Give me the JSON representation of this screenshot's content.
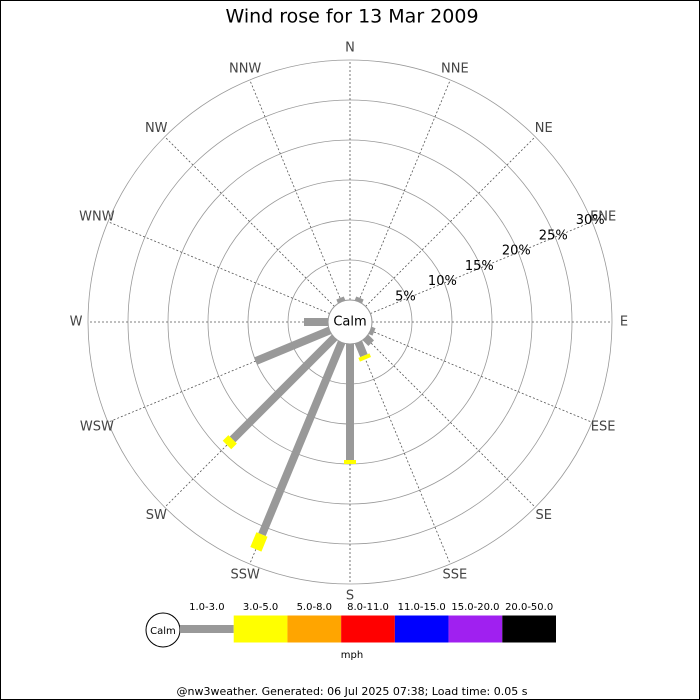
{
  "chart_data": {
    "type": "windrose",
    "title": "Wind rose for 13 Mar 2009",
    "categories": [
      "N",
      "NNE",
      "NE",
      "ENE",
      "E",
      "ESE",
      "SE",
      "SSE",
      "S",
      "SSW",
      "SW",
      "WSW",
      "W",
      "WNW",
      "NW",
      "NNW"
    ],
    "series": [
      {
        "name": "1.0-3.0",
        "color": "#999999",
        "values": [
          0,
          0.5,
          0,
          0,
          0,
          0.5,
          1,
          1.8,
          14.5,
          26,
          18,
          10,
          3,
          0,
          0,
          0.5
        ]
      },
      {
        "name": "3.0-5.0",
        "color": "#ffff00",
        "values": [
          0,
          0,
          0,
          0,
          0,
          0,
          0,
          0.5,
          0.5,
          2,
          1,
          0,
          0,
          0,
          0,
          0
        ]
      },
      {
        "name": "5.0-8.0",
        "color": "#ffa500",
        "values": [
          0,
          0,
          0,
          0,
          0,
          0,
          0,
          0,
          0,
          0,
          0,
          0,
          0,
          0,
          0,
          0
        ]
      },
      {
        "name": "8.0-11.0",
        "color": "#ff0000",
        "values": [
          0,
          0,
          0,
          0,
          0,
          0,
          0,
          0,
          0,
          0,
          0,
          0,
          0,
          0,
          0,
          0
        ]
      },
      {
        "name": "11.0-15.0",
        "color": "#0000ff",
        "values": [
          0,
          0,
          0,
          0,
          0,
          0,
          0,
          0,
          0,
          0,
          0,
          0,
          0,
          0,
          0,
          0
        ]
      },
      {
        "name": "15.0-20.0",
        "color": "#a020f0",
        "values": [
          0,
          0,
          0,
          0,
          0,
          0,
          0,
          0,
          0,
          0,
          0,
          0,
          0,
          0,
          0,
          0
        ]
      },
      {
        "name": "20.0-50.0",
        "color": "#000000",
        "values": [
          0,
          0,
          0,
          0,
          0,
          0,
          0,
          0,
          0,
          0,
          0,
          0,
          0,
          0,
          0,
          0
        ]
      }
    ],
    "rlim": [
      0,
      30
    ],
    "rticks": [
      {
        "value": 5,
        "label": "5%"
      },
      {
        "value": 10,
        "label": "10%"
      },
      {
        "value": 15,
        "label": "15%"
      },
      {
        "value": 20,
        "label": "20%"
      },
      {
        "value": 25,
        "label": "25%"
      },
      {
        "value": 30,
        "label": "30%"
      }
    ],
    "calm_label": "Calm",
    "unit": "mph",
    "footer": "@nw3weather. Generated: 06 Jul 2025 07:38; Load time: 0.05 s"
  }
}
